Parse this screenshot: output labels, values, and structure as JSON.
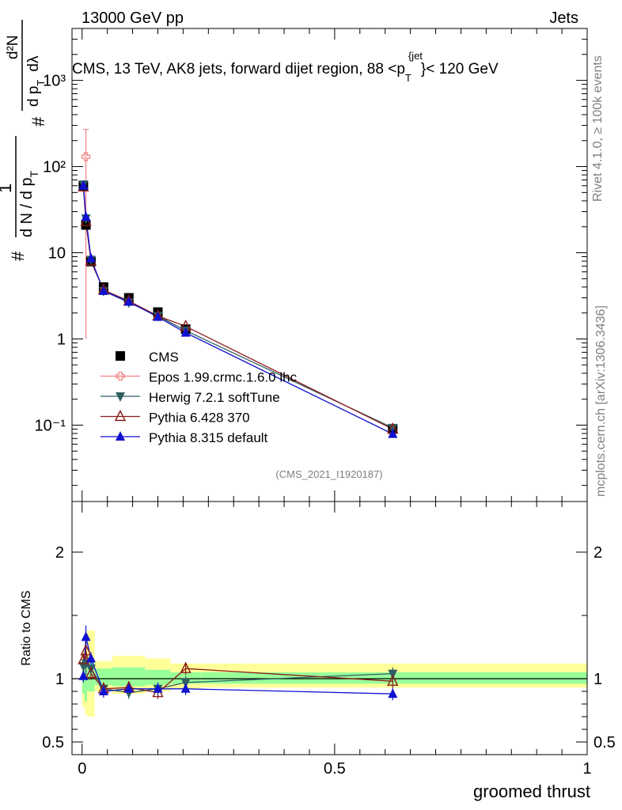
{
  "header": {
    "left": "13000 GeV pp",
    "right": "Jets"
  },
  "side": {
    "rivet": "Rivet 4.1.0, ≥ 100k events",
    "mcplots": "mcplots.cern.ch [arXiv:1306.3436]"
  },
  "chart_data": [
    {
      "type": "line",
      "panel": "main",
      "title": "CMS, 13 TeV, AK8 jets, forward dijet region, 88 <p_T^{jet}< 120 GeV",
      "title_parts": {
        "pre": "CMS, 13 TeV, AK8 jets, forward dijet region, 88 <p",
        "sub": "T",
        "sup": "{jet",
        "post": "}< 120 GeV"
      },
      "ylabel": "# 1/(dN/dp_T) # d²N/(dp_T dλ)",
      "ylabel_parts": {
        "hash": "#",
        "one": "1",
        "den": "d N / d p",
        "sub": "T",
        "num": "d²N",
        "nden": "d p",
        "lam": "dλ"
      },
      "xlabel": "groomed thrust",
      "yscale": "log",
      "ylim": [
        0.013,
        4000
      ],
      "xlim": [
        -0.02,
        1.0
      ],
      "ytick_labels": [
        "10⁻¹",
        "1",
        "10",
        "10²",
        "10³"
      ],
      "ytick_values": [
        0.1,
        1,
        10,
        100,
        1000
      ],
      "watermark": "(CMS_2021_I1920187)",
      "x": [
        0.0025,
        0.0075,
        0.0175,
        0.0425,
        0.0925,
        0.15,
        0.205,
        0.615
      ],
      "series": [
        {
          "name": "CMS",
          "color": "#000000",
          "marker": "square",
          "values": [
            60,
            21,
            7.9,
            4.0,
            3.0,
            2.05,
            1.3,
            0.09
          ]
        },
        {
          "name": "Epos 1.99.crmc.1.6.0 lhc",
          "color": "#f08080",
          "marker": "open-cross",
          "values": [
            130
          ],
          "x": [
            0.0075
          ],
          "err": [
            [
              1,
              270
            ]
          ]
        },
        {
          "name": "Herwig 7.2.1 softTune",
          "color": "#2e5e61",
          "marker": "triangle-down",
          "values": [
            62,
            25,
            8.3,
            3.6,
            2.65,
            1.85,
            1.25,
            0.093
          ]
        },
        {
          "name": "Pythia 6.428 370",
          "color": "#8b1a1a",
          "marker": "open-triangle",
          "values": [
            58,
            23,
            8.0,
            3.7,
            2.75,
            1.85,
            1.4,
            0.09
          ]
        },
        {
          "name": "Pythia 8.315 default",
          "color": "#1010d0",
          "marker": "triangle",
          "values": [
            60,
            26,
            8.6,
            3.6,
            2.7,
            1.8,
            1.18,
            0.079
          ]
        }
      ]
    },
    {
      "type": "line",
      "panel": "ratio",
      "ylabel": "Ratio to CMS",
      "xlabel": "groomed thrust",
      "ylim": [
        0.4,
        2.4
      ],
      "xlim": [
        -0.02,
        1.0
      ],
      "ytick_labels": [
        "0.5",
        "1",
        "2"
      ],
      "ytick_values": [
        0.5,
        1,
        2
      ],
      "xtick_labels": [
        "0",
        "0.5",
        "1"
      ],
      "xtick_values": [
        0,
        0.5,
        1
      ],
      "x": [
        0.0025,
        0.0075,
        0.0175,
        0.0425,
        0.0925,
        0.15,
        0.205,
        0.615
      ],
      "band_edges": [
        0,
        0.005,
        0.01,
        0.025,
        0.06,
        0.125,
        0.175,
        0.235,
        1.0
      ],
      "band_inner": [
        [
          0.88,
          1.12
        ],
        [
          0.82,
          1.18
        ],
        [
          0.9,
          1.15
        ],
        [
          0.95,
          1.08
        ],
        [
          0.94,
          1.09
        ],
        [
          0.95,
          1.07
        ],
        [
          0.96,
          1.05
        ],
        [
          0.96,
          1.05
        ]
      ],
      "band_outer": [
        [
          0.78,
          1.22
        ],
        [
          0.72,
          1.35
        ],
        [
          0.7,
          1.38
        ],
        [
          0.9,
          1.14
        ],
        [
          0.88,
          1.18
        ],
        [
          0.9,
          1.16
        ],
        [
          0.92,
          1.12
        ],
        [
          0.93,
          1.12
        ]
      ],
      "series": [
        {
          "name": "Herwig 7.2.1 softTune",
          "color": "#2e5e61",
          "marker": "triangle-down",
          "values": [
            1.1,
            1.12,
            1.08,
            0.92,
            0.89,
            0.92,
            0.97,
            1.04
          ]
        },
        {
          "name": "Pythia 6.428 370",
          "color": "#8b1a1a",
          "marker": "open-triangle",
          "values": [
            1.15,
            1.22,
            1.04,
            0.92,
            0.93,
            0.89,
            1.08,
            0.98
          ]
        },
        {
          "name": "Pythia 8.315 default",
          "color": "#1010d0",
          "marker": "triangle",
          "values": [
            1.02,
            1.33,
            1.16,
            0.9,
            0.92,
            0.92,
            0.92,
            0.88
          ]
        }
      ]
    }
  ]
}
